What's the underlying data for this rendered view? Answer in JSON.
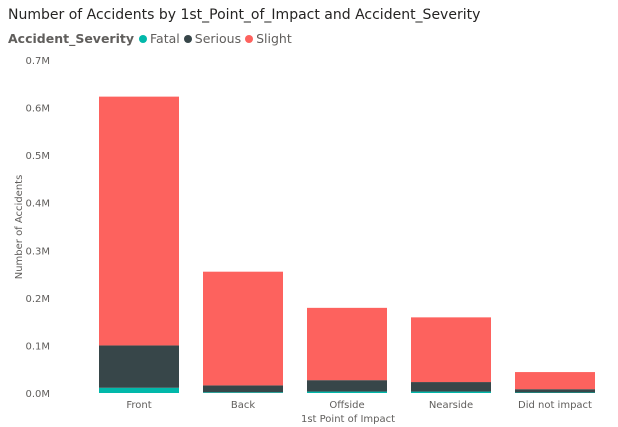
{
  "colors": {
    "Fatal": "#01b8aa",
    "Serious": "#374649",
    "Slight": "#fd625e"
  },
  "legend": {
    "title": "Accident_Severity"
  },
  "chart_data": {
    "type": "bar",
    "stacked": true,
    "title": "Number of Accidents by 1st_Point_of_Impact and Accident_Severity",
    "xlabel": "1st Point of Impact",
    "ylabel": "Number of Accidents",
    "categories": [
      "Front",
      "Back",
      "Offside",
      "Nearside",
      "Did not impact"
    ],
    "series": [
      {
        "name": "Fatal",
        "values": [
          11000,
          1500,
          3000,
          3000,
          1000
        ]
      },
      {
        "name": "Serious",
        "values": [
          89000,
          14500,
          24000,
          20000,
          7000
        ]
      },
      {
        "name": "Slight",
        "values": [
          523000,
          239000,
          152000,
          136000,
          36000
        ]
      }
    ],
    "ylim": [
      0,
      700000
    ],
    "yticks": [
      0,
      100000,
      200000,
      300000,
      400000,
      500000,
      600000,
      700000
    ],
    "ytick_labels": [
      "0.0M",
      "0.1M",
      "0.2M",
      "0.3M",
      "0.4M",
      "0.5M",
      "0.6M",
      "0.7M"
    ],
    "grid": false,
    "legend_position": "top-left"
  }
}
